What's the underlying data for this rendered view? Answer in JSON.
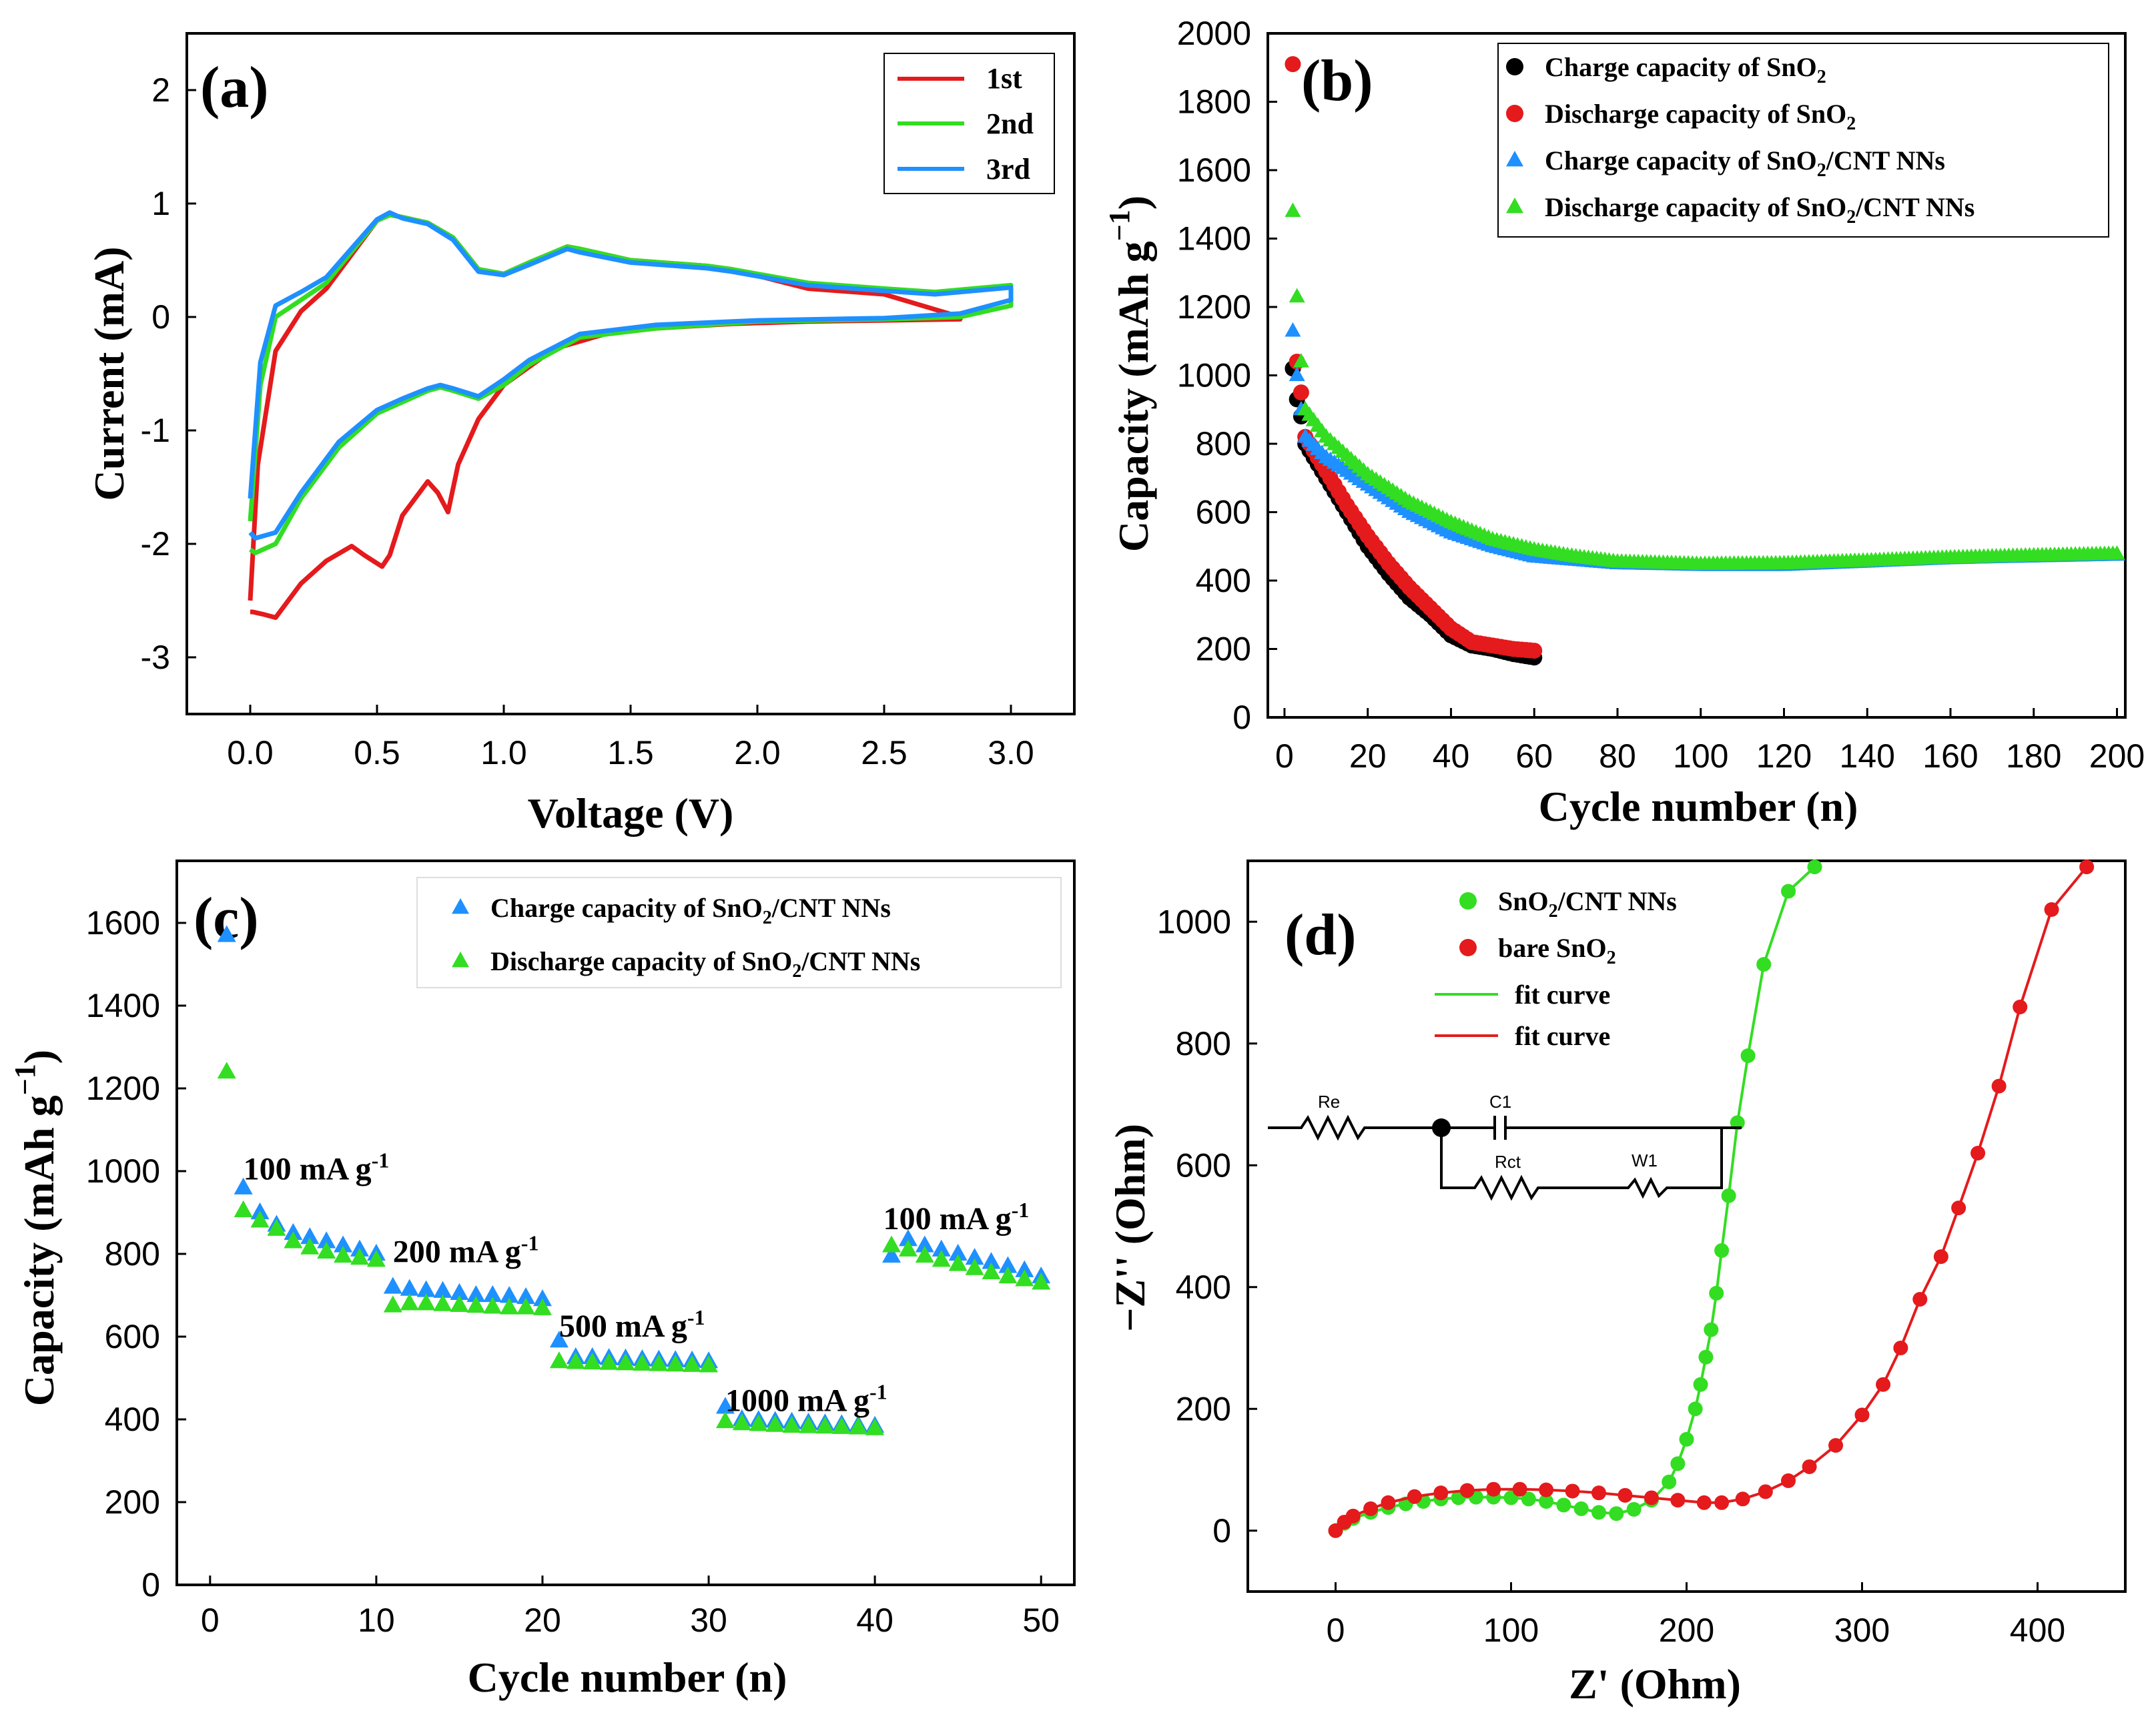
{
  "colors": {
    "red": "#e41a1c",
    "green": "#33dd22",
    "blue": "#1e90ff",
    "black": "#000000"
  },
  "chart_data": [
    {
      "id": "a",
      "type": "line",
      "panel_label": "(a)",
      "xlabel": "Voltage (V)",
      "ylabel": "Current (mA)",
      "xlim": [
        -0.25,
        3.25
      ],
      "ylim": [
        -3.5,
        2.5
      ],
      "xticks": [
        "0.0",
        "0.5",
        "1.0",
        "1.5",
        "2.0",
        "2.5",
        "3.0"
      ],
      "xtick_values": [
        0,
        0.5,
        1.0,
        1.5,
        2.0,
        2.5,
        3.0
      ],
      "yticks": [
        "-3",
        "-2",
        "-1",
        "0",
        "1",
        "2"
      ],
      "ytick_values": [
        -3,
        -2,
        -1,
        0,
        1,
        2
      ],
      "series": [
        {
          "name": "1st",
          "color": "#e41a1c",
          "x": [
            0.0,
            0.01,
            0.05,
            0.1,
            0.2,
            0.3,
            0.4,
            0.45,
            0.52,
            0.55,
            0.6,
            0.7,
            0.74,
            0.78,
            0.82,
            0.9,
            1.0,
            1.2,
            1.4,
            1.6,
            1.9,
            2.2,
            2.5,
            2.8,
            2.8,
            2.5,
            2.2,
            1.9,
            1.8,
            1.5,
            1.3,
            1.25,
            1.1,
            1.0,
            0.9,
            0.8,
            0.7,
            0.6,
            0.55,
            0.5,
            0.4,
            0.3,
            0.2,
            0.1,
            0.03,
            0.0
          ],
          "y": [
            -2.6,
            -2.6,
            -2.62,
            -2.65,
            -2.35,
            -2.15,
            -2.02,
            -2.1,
            -2.2,
            -2.1,
            -1.75,
            -1.45,
            -1.55,
            -1.72,
            -1.3,
            -0.9,
            -0.6,
            -0.28,
            -0.15,
            -0.1,
            -0.06,
            -0.04,
            -0.03,
            -0.02,
            0.0,
            0.2,
            0.25,
            0.42,
            0.45,
            0.5,
            0.6,
            0.62,
            0.48,
            0.38,
            0.42,
            0.7,
            0.83,
            0.88,
            0.9,
            0.85,
            0.55,
            0.25,
            0.05,
            -0.3,
            -1.3,
            -2.5
          ]
        },
        {
          "name": "2nd",
          "color": "#33dd22",
          "x": [
            0.0,
            0.02,
            0.1,
            0.2,
            0.35,
            0.5,
            0.6,
            0.7,
            0.75,
            0.8,
            0.9,
            1.0,
            1.1,
            1.3,
            1.6,
            2.0,
            2.5,
            2.8,
            3.0,
            3.0,
            2.7,
            2.5,
            2.2,
            1.9,
            1.8,
            1.5,
            1.3,
            1.25,
            1.1,
            1.0,
            0.9,
            0.8,
            0.7,
            0.6,
            0.55,
            0.5,
            0.3,
            0.2,
            0.1,
            0.04,
            0.0
          ],
          "y": [
            -2.05,
            -2.08,
            -2.0,
            -1.6,
            -1.15,
            -0.85,
            -0.75,
            -0.65,
            -0.62,
            -0.65,
            -0.72,
            -0.6,
            -0.42,
            -0.18,
            -0.1,
            -0.04,
            -0.02,
            0.0,
            0.1,
            0.28,
            0.22,
            0.25,
            0.3,
            0.42,
            0.45,
            0.5,
            0.6,
            0.62,
            0.48,
            0.38,
            0.42,
            0.7,
            0.83,
            0.88,
            0.9,
            0.85,
            0.3,
            0.15,
            0.0,
            -0.6,
            -1.8
          ]
        },
        {
          "name": "3rd",
          "color": "#1e90ff",
          "x": [
            0.0,
            0.02,
            0.1,
            0.2,
            0.35,
            0.5,
            0.6,
            0.7,
            0.75,
            0.8,
            0.9,
            1.0,
            1.1,
            1.3,
            1.6,
            2.0,
            2.5,
            2.8,
            3.0,
            3.0,
            2.7,
            2.5,
            2.2,
            1.9,
            1.8,
            1.5,
            1.3,
            1.25,
            1.1,
            1.0,
            0.9,
            0.8,
            0.7,
            0.6,
            0.55,
            0.5,
            0.3,
            0.2,
            0.1,
            0.04,
            0.0
          ],
          "y": [
            -1.9,
            -1.95,
            -1.9,
            -1.55,
            -1.1,
            -0.82,
            -0.72,
            -0.63,
            -0.6,
            -0.63,
            -0.7,
            -0.55,
            -0.38,
            -0.15,
            -0.07,
            -0.03,
            -0.01,
            0.03,
            0.15,
            0.26,
            0.2,
            0.23,
            0.28,
            0.4,
            0.43,
            0.48,
            0.57,
            0.6,
            0.46,
            0.37,
            0.4,
            0.68,
            0.82,
            0.87,
            0.92,
            0.86,
            0.35,
            0.22,
            0.1,
            -0.4,
            -1.6
          ]
        }
      ],
      "legend": "top-right"
    },
    {
      "id": "b",
      "type": "scatter",
      "panel_label": "(b)",
      "xlabel": "Cycle number (n)",
      "ylabel": "Capacity (mAh g",
      "ylabel_sup": "−1",
      "ylabel_close": ")",
      "xlim": [
        -4,
        202
      ],
      "ylim": [
        0,
        2000
      ],
      "xticks": [
        "0",
        "20",
        "40",
        "60",
        "80",
        "100",
        "120",
        "140",
        "160",
        "180",
        "200"
      ],
      "xtick_values": [
        0,
        20,
        40,
        60,
        80,
        100,
        120,
        140,
        160,
        180,
        200
      ],
      "yticks": [
        "0",
        "200",
        "400",
        "600",
        "800",
        "1000",
        "1200",
        "1400",
        "1600",
        "1800",
        "2000"
      ],
      "ytick_values": [
        0,
        200,
        400,
        600,
        800,
        1000,
        1200,
        1400,
        1600,
        1800,
        2000
      ],
      "series": [
        {
          "name": "Charge capacity of SnO",
          "sub": "2",
          "suffix": "",
          "marker": "circle",
          "color": "#000000",
          "x": [
            2,
            3,
            4,
            5,
            10,
            15,
            20,
            25,
            30,
            35,
            40,
            45,
            50,
            55,
            60
          ],
          "y": [
            1020,
            930,
            880,
            800,
            700,
            600,
            500,
            420,
            350,
            300,
            240,
            210,
            200,
            185,
            175
          ]
        },
        {
          "name": "Discharge capacity of SnO",
          "sub": "2",
          "suffix": "",
          "marker": "circle",
          "color": "#e41a1c",
          "x": [
            2,
            3,
            4,
            5,
            10,
            15,
            20,
            25,
            30,
            35,
            40,
            45,
            50,
            55,
            60
          ],
          "y": [
            1910,
            1040,
            950,
            820,
            720,
            620,
            530,
            450,
            380,
            320,
            260,
            220,
            210,
            200,
            195
          ]
        },
        {
          "name": "Charge capacity of SnO",
          "sub": "2",
          "suffix": "/CNT NNs",
          "marker": "triangle",
          "color": "#1e90ff",
          "x": [
            2,
            3,
            4,
            5,
            10,
            20,
            30,
            40,
            50,
            60,
            70,
            80,
            100,
            120,
            140,
            160,
            180,
            200
          ],
          "y": [
            1130,
            1000,
            900,
            820,
            760,
            680,
            600,
            540,
            500,
            470,
            460,
            450,
            445,
            445,
            455,
            465,
            470,
            475
          ]
        },
        {
          "name": "Discharge capacity of SnO",
          "sub": "2",
          "suffix": "/CNT NNs",
          "marker": "triangle",
          "color": "#33dd22",
          "x": [
            2,
            3,
            4,
            5,
            10,
            20,
            30,
            40,
            50,
            60,
            70,
            80,
            100,
            120,
            140,
            160,
            180,
            200
          ],
          "y": [
            1480,
            1230,
            1040,
            900,
            820,
            710,
            630,
            570,
            520,
            490,
            470,
            455,
            448,
            450,
            458,
            467,
            473,
            478
          ]
        }
      ],
      "legend": "top-right"
    },
    {
      "id": "c",
      "type": "scatter",
      "panel_label": "(c)",
      "xlabel": "Cycle number (n)",
      "ylabel": "Capacity (mAh g",
      "ylabel_sup": "−1",
      "ylabel_close": ")",
      "xlim": [
        -2,
        52
      ],
      "ylim": [
        0,
        1750
      ],
      "xticks": [
        "0",
        "10",
        "20",
        "30",
        "40",
        "50"
      ],
      "xtick_values": [
        0,
        10,
        20,
        30,
        40,
        50
      ],
      "yticks": [
        "0",
        "200",
        "400",
        "600",
        "800",
        "1000",
        "1200",
        "1400",
        "1600"
      ],
      "ytick_values": [
        0,
        200,
        400,
        600,
        800,
        1000,
        1200,
        1400,
        1600
      ],
      "series": [
        {
          "name": "Charge capacity of SnO",
          "sub": "2",
          "suffix": "/CNT NNs",
          "marker": "triangle",
          "color": "#1e90ff",
          "x": [
            1,
            2,
            3,
            4,
            5,
            6,
            7,
            8,
            9,
            10,
            11,
            12,
            13,
            14,
            15,
            16,
            17,
            18,
            19,
            20,
            21,
            22,
            23,
            24,
            25,
            26,
            27,
            28,
            29,
            30,
            31,
            32,
            33,
            34,
            35,
            36,
            37,
            38,
            39,
            40,
            41,
            42,
            43,
            44,
            45,
            46,
            47,
            48,
            49,
            50
          ],
          "y": [
            1570,
            960,
            900,
            870,
            850,
            840,
            830,
            820,
            810,
            800,
            720,
            715,
            712,
            710,
            705,
            700,
            700,
            698,
            695,
            690,
            590,
            550,
            550,
            548,
            547,
            545,
            544,
            543,
            542,
            540,
            430,
            400,
            398,
            396,
            394,
            392,
            390,
            388,
            386,
            384,
            795,
            835,
            820,
            810,
            800,
            790,
            780,
            770,
            760,
            745
          ]
        },
        {
          "name": "Discharge capacity of SnO",
          "sub": "2",
          "suffix": "/CNT NNs",
          "marker": "triangle",
          "color": "#33dd22",
          "x": [
            1,
            2,
            3,
            4,
            5,
            6,
            7,
            8,
            9,
            10,
            11,
            12,
            13,
            14,
            15,
            16,
            17,
            18,
            19,
            20,
            21,
            22,
            23,
            24,
            25,
            26,
            27,
            28,
            29,
            30,
            31,
            32,
            33,
            34,
            35,
            36,
            37,
            38,
            39,
            40,
            41,
            42,
            43,
            44,
            45,
            46,
            47,
            48,
            49,
            50
          ],
          "y": [
            1240,
            905,
            880,
            860,
            830,
            815,
            805,
            795,
            790,
            785,
            675,
            680,
            680,
            678,
            676,
            674,
            672,
            670,
            670,
            668,
            540,
            538,
            537,
            536,
            535,
            534,
            533,
            532,
            531,
            530,
            395,
            390,
            388,
            386,
            384,
            383,
            382,
            381,
            380,
            378,
            820,
            810,
            795,
            785,
            775,
            765,
            755,
            745,
            738,
            730
          ]
        }
      ],
      "annotations": [
        {
          "main": "100 mA g",
          "sup": "-1",
          "x": 2,
          "y": 980
        },
        {
          "main": "200 mA g",
          "sup": "-1",
          "x": 11,
          "y": 780
        },
        {
          "main": "500 mA g",
          "sup": "-1",
          "x": 21,
          "y": 600
        },
        {
          "main": "1000 mA g",
          "sup": "-1",
          "x": 31,
          "y": 420
        },
        {
          "main": "100 mA g",
          "sup": "-1",
          "x": 40.5,
          "y": 860
        }
      ],
      "legend": "top-right"
    },
    {
      "id": "d",
      "type": "scatter",
      "panel_label": "(d)",
      "xlabel": "Z' (Ohm)",
      "ylabel": "−Z'' (Ohm)",
      "xlim": [
        -50,
        450
      ],
      "ylim": [
        -100,
        1100
      ],
      "xticks": [
        "0",
        "100",
        "200",
        "300",
        "400"
      ],
      "xtick_values": [
        0,
        100,
        200,
        300,
        400
      ],
      "yticks": [
        "0",
        "200",
        "400",
        "600",
        "800",
        "1000"
      ],
      "ytick_values": [
        0,
        200,
        400,
        600,
        800,
        1000
      ],
      "series": [
        {
          "name": "SnO",
          "sub": "2",
          "suffix": "/CNT NNs",
          "marker": "circle",
          "color": "#33dd22",
          "x": [
            0,
            5,
            10,
            20,
            30,
            40,
            50,
            60,
            70,
            80,
            90,
            100,
            110,
            120,
            130,
            140,
            150,
            160,
            170,
            180,
            190,
            195,
            200,
            205,
            208,
            211,
            214,
            217,
            220,
            224,
            229,
            235,
            244,
            258,
            273
          ],
          "y": [
            0,
            12,
            20,
            30,
            38,
            44,
            48,
            52,
            54,
            55,
            55,
            54,
            52,
            48,
            42,
            36,
            30,
            28,
            35,
            50,
            80,
            110,
            150,
            200,
            240,
            285,
            330,
            390,
            460,
            550,
            670,
            780,
            930,
            1050,
            1090
          ]
        },
        {
          "name": "bare SnO",
          "sub": "2",
          "suffix": "",
          "marker": "circle",
          "color": "#e41a1c",
          "x": [
            0,
            5,
            10,
            20,
            30,
            45,
            60,
            75,
            90,
            105,
            120,
            135,
            150,
            165,
            180,
            195,
            210,
            220,
            232,
            245,
            258,
            270,
            285,
            300,
            312,
            322,
            333,
            345,
            355,
            366,
            378,
            390,
            408,
            428
          ],
          "y": [
            0,
            14,
            24,
            36,
            46,
            56,
            62,
            66,
            68,
            68,
            67,
            65,
            62,
            58,
            54,
            50,
            46,
            46,
            52,
            64,
            82,
            105,
            140,
            190,
            240,
            300,
            380,
            450,
            530,
            620,
            730,
            860,
            1020,
            1090
          ]
        }
      ],
      "fit_legend": [
        {
          "name": "fit curve",
          "color": "#33dd22"
        },
        {
          "name": "fit curve",
          "color": "#e41a1c"
        }
      ],
      "circuit": {
        "re": "Re",
        "c1": "C1",
        "rct": "Rct",
        "w1": "W1"
      },
      "legend": "top-left"
    }
  ]
}
